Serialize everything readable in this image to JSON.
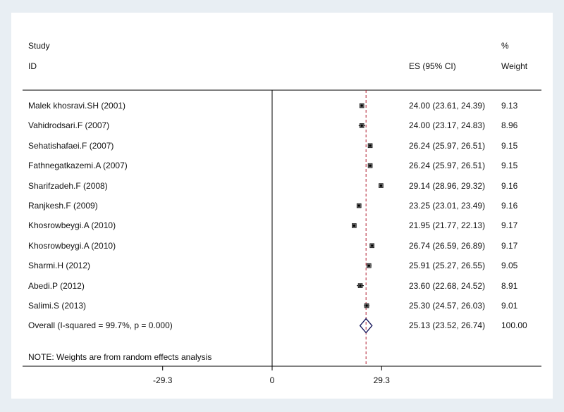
{
  "chart_data": {
    "type": "forest",
    "header": {
      "study_line1": "Study",
      "study_line2": "ID",
      "es_label": "ES (95% CI)",
      "weight_line1": "%",
      "weight_line2": "Weight"
    },
    "studies": [
      {
        "label": "Malek khosravi.SH (2001)",
        "es": 24.0,
        "lo": 23.61,
        "hi": 24.39,
        "es_text": "24.00 (23.61, 24.39)",
        "weight": "9.13"
      },
      {
        "label": "Vahidrodsari.F (2007)",
        "es": 24.0,
        "lo": 23.17,
        "hi": 24.83,
        "es_text": "24.00 (23.17, 24.83)",
        "weight": "8.96"
      },
      {
        "label": "Sehatishafaei.F (2007)",
        "es": 26.24,
        "lo": 25.97,
        "hi": 26.51,
        "es_text": "26.24 (25.97, 26.51)",
        "weight": "9.15"
      },
      {
        "label": "Fathnegatkazemi.A (2007)",
        "es": 26.24,
        "lo": 25.97,
        "hi": 26.51,
        "es_text": "26.24 (25.97, 26.51)",
        "weight": "9.15"
      },
      {
        "label": "Sharifzadeh.F (2008)",
        "es": 29.14,
        "lo": 28.96,
        "hi": 29.32,
        "es_text": "29.14 (28.96, 29.32)",
        "weight": "9.16"
      },
      {
        "label": "Ranjkesh.F (2009)",
        "es": 23.25,
        "lo": 23.01,
        "hi": 23.49,
        "es_text": "23.25 (23.01, 23.49)",
        "weight": "9.16"
      },
      {
        "label": "Khosrowbeygi.A (2010)",
        "es": 21.95,
        "lo": 21.77,
        "hi": 22.13,
        "es_text": "21.95 (21.77, 22.13)",
        "weight": "9.17"
      },
      {
        "label": "Khosrowbeygi.A (2010)",
        "es": 26.74,
        "lo": 26.59,
        "hi": 26.89,
        "es_text": "26.74 (26.59, 26.89)",
        "weight": "9.17"
      },
      {
        "label": "Sharmi.H (2012)",
        "es": 25.91,
        "lo": 25.27,
        "hi": 26.55,
        "es_text": "25.91 (25.27, 26.55)",
        "weight": "9.05"
      },
      {
        "label": "Abedi.P (2012)",
        "es": 23.6,
        "lo": 22.68,
        "hi": 24.52,
        "es_text": "23.60 (22.68, 24.52)",
        "weight": "8.91"
      },
      {
        "label": "Salimi.S (2013)",
        "es": 25.3,
        "lo": 24.57,
        "hi": 26.03,
        "es_text": "25.30 (24.57, 26.03)",
        "weight": "9.01"
      }
    ],
    "overall": {
      "label": "Overall  (I-squared = 99.7%, p = 0.000)",
      "es": 25.13,
      "lo": 23.52,
      "hi": 26.74,
      "es_text": "25.13 (23.52, 26.74)",
      "weight": "100.00"
    },
    "note": "NOTE: Weights are from random effects analysis",
    "x_ticks": [
      -29.3,
      0,
      29.3
    ],
    "x_tick_labels": [
      "-29.3",
      "0",
      "29.3"
    ],
    "xlim": [
      -33.5,
      33.5
    ],
    "colors": {
      "background": "#e8eef3",
      "panel": "#ffffff",
      "diamond": "#1a1a5e",
      "overall_line": "#b01c2e",
      "marker": "#000000"
    }
  }
}
